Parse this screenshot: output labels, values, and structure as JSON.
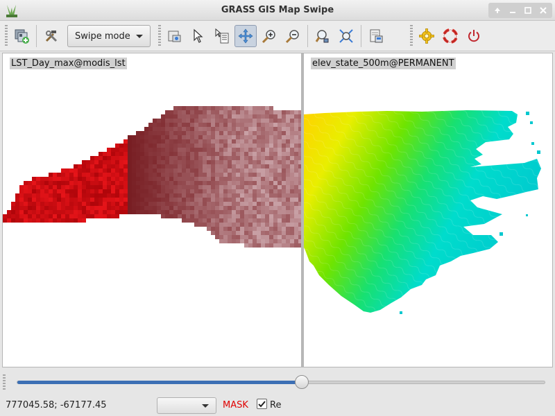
{
  "window": {
    "title": "GRASS GIS Map Swipe"
  },
  "toolbar": {
    "swipe_mode_label": "Swipe mode",
    "tools": [
      {
        "name": "add-layers",
        "icon": "layers-add-icon"
      },
      {
        "name": "tools",
        "icon": "hammer-wrench-icon"
      },
      {
        "name": "display-map",
        "icon": "display-icon"
      },
      {
        "name": "pointer",
        "icon": "pointer-icon"
      },
      {
        "name": "query",
        "icon": "query-icon"
      },
      {
        "name": "pan",
        "icon": "pan-icon"
      },
      {
        "name": "zoom-in",
        "icon": "zoom-in-icon"
      },
      {
        "name": "zoom-out",
        "icon": "zoom-out-icon"
      },
      {
        "name": "zoom-back",
        "icon": "zoom-back-icon"
      },
      {
        "name": "zoom-extent",
        "icon": "zoom-extent-icon"
      },
      {
        "name": "save-image",
        "icon": "save-image-icon"
      },
      {
        "name": "settings",
        "icon": "gear-icon"
      },
      {
        "name": "help",
        "icon": "lifebuoy-icon"
      },
      {
        "name": "quit",
        "icon": "power-icon"
      }
    ]
  },
  "map": {
    "left_layer": "LST_Day_max@modis_lst",
    "right_layer": "elev_state_500m@PERMANENT"
  },
  "slider": {
    "value_fraction": 0.54
  },
  "statusbar": {
    "coordinates": "777045.58; -67177.45",
    "mask_label": "MASK",
    "render_checkbox_label": "Re",
    "render_checked": true
  },
  "colors": {
    "mask": "#e00000",
    "slider_fill": "#3c6fb4",
    "lst_dark": "#7a0e14",
    "lst_bright": "#e01010",
    "elev_high": "#ffd200",
    "elev_mid": "#3fe000",
    "elev_low": "#00cdd0"
  }
}
